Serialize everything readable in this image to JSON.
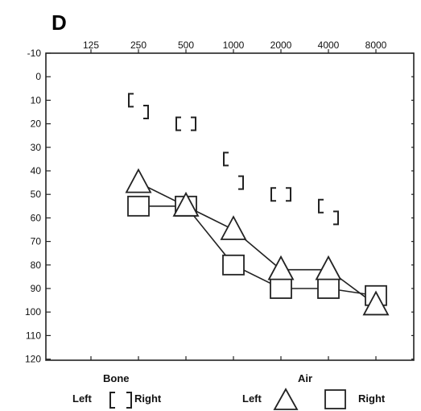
{
  "chart_data": {
    "type": "line",
    "panel_label": "D",
    "x": [
      125,
      250,
      500,
      1000,
      2000,
      4000,
      8000
    ],
    "x_tick_labels": [
      "125",
      "250",
      "500",
      "1000",
      "2000",
      "4000",
      "8000"
    ],
    "x_scale": "log2 (octave)",
    "y_tick_labels": [
      "-10",
      "0",
      "10",
      "20",
      "30",
      "40",
      "50",
      "60",
      "70",
      "80",
      "90",
      "100",
      "110",
      "120"
    ],
    "ylim": [
      -10,
      120
    ],
    "y_inverted": true,
    "grid": false,
    "series": [
      {
        "name": "Left",
        "group": "Air",
        "marker": "triangle",
        "connected": true,
        "x": [
          250,
          500,
          1000,
          2000,
          4000,
          8000
        ],
        "values": [
          45,
          55,
          65,
          82,
          82,
          97
        ]
      },
      {
        "name": "Right",
        "group": "Air",
        "marker": "square",
        "connected": true,
        "x": [
          250,
          500,
          1000,
          2000,
          4000,
          8000
        ],
        "values": [
          55,
          55,
          80,
          90,
          90,
          93
        ]
      },
      {
        "name": "Left",
        "group": "Bone",
        "marker": "left-bracket",
        "connected": false,
        "x": [
          250,
          500,
          1000,
          2000,
          4000
        ],
        "values": [
          10,
          20,
          35,
          50,
          55
        ]
      },
      {
        "name": "Right",
        "group": "Bone",
        "marker": "right-bracket",
        "connected": false,
        "x": [
          250,
          500,
          1000,
          2000,
          4000
        ],
        "values": [
          15,
          20,
          45,
          50,
          60
        ]
      }
    ],
    "legend": {
      "placement": "bottom",
      "bone_title": "Bone",
      "bone_left": "Left",
      "bone_right": "Right",
      "air_title": "Air",
      "air_left": "Left",
      "air_right": "Right"
    }
  }
}
